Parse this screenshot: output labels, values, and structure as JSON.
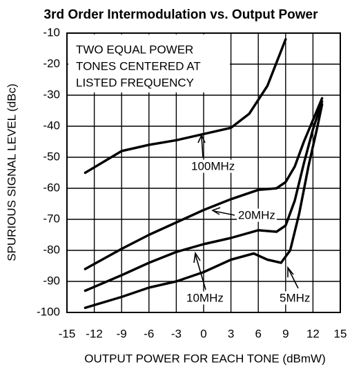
{
  "chart_data": {
    "type": "line",
    "title": "3rd Order Intermodulation vs. Output Power",
    "xlabel": "OUTPUT POWER FOR EACH TONE (dBmW)",
    "ylabel": "SPURIOUS SIGNAL LEVEL (dBc)",
    "note": [
      "TWO EQUAL POWER",
      "TONES CENTERED AT",
      "LISTED FREQUENCY"
    ],
    "xlim": [
      -15,
      15
    ],
    "xticks": [
      -15,
      -12,
      -9,
      -6,
      -3,
      0,
      3,
      6,
      9,
      12,
      15
    ],
    "ylim": [
      -100,
      -10
    ],
    "yticks": [
      -10,
      -20,
      -30,
      -40,
      -50,
      -60,
      -70,
      -80,
      -90,
      -100
    ],
    "grid": true,
    "series": [
      {
        "name": "100MHz",
        "color": "#000000",
        "x": [
          -13,
          -11,
          -9,
          -6,
          -3,
          0,
          3,
          5,
          7,
          9
        ],
        "values": [
          -55,
          -51.5,
          -48,
          -46,
          -44.5,
          -42.5,
          -40.5,
          -36,
          -27,
          -12
        ]
      },
      {
        "name": "20MHz",
        "color": "#000000",
        "x": [
          -13,
          -9,
          -6,
          -3,
          0,
          3,
          6,
          8,
          9,
          10,
          11,
          12,
          13
        ],
        "values": [
          -86,
          -79.5,
          -75,
          -71,
          -67,
          -63.5,
          -60.5,
          -60,
          -58,
          -53,
          -45,
          -38,
          -31
        ]
      },
      {
        "name": "10MHz",
        "color": "#000000",
        "x": [
          -13,
          -9,
          -6,
          -3,
          0,
          3,
          6,
          8,
          9,
          10,
          11,
          12,
          13
        ],
        "values": [
          -93,
          -88,
          -84,
          -80.5,
          -78,
          -76,
          -73.5,
          -74,
          -72,
          -64,
          -52,
          -41,
          -32
        ]
      },
      {
        "name": "5MHz",
        "color": "#000000",
        "x": [
          -13,
          -9,
          -6,
          -3,
          0,
          3,
          5.5,
          7,
          8.5,
          9.5,
          10.5,
          11.5,
          12.5,
          13
        ],
        "values": [
          -98.5,
          -95,
          -92,
          -90,
          -87,
          -83,
          -81,
          -83,
          -84,
          -80,
          -68,
          -53,
          -40,
          -33
        ]
      }
    ]
  }
}
